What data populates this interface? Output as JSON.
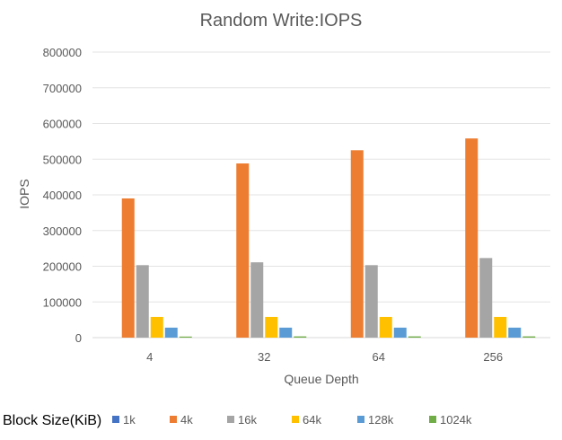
{
  "chart_data": {
    "type": "bar",
    "title": "Random Write:IOPS",
    "xlabel": "Queue Depth",
    "ylabel": "IOPS",
    "categories": [
      "4",
      "32",
      "64",
      "256"
    ],
    "ylim": [
      0,
      800000
    ],
    "yticks": [
      0,
      100000,
      200000,
      300000,
      400000,
      500000,
      600000,
      700000,
      800000
    ],
    "grid": true,
    "legend_title": "Block Size(KiB)",
    "legend_position": "bottom",
    "series": [
      {
        "name": "1k",
        "color": "#4472C4",
        "values": [
          0,
          0,
          0,
          0
        ]
      },
      {
        "name": "4k",
        "color": "#ED7D31",
        "values": [
          390000,
          488000,
          525000,
          558000
        ]
      },
      {
        "name": "16k",
        "color": "#A5A5A5",
        "values": [
          203000,
          211000,
          203000,
          223000
        ]
      },
      {
        "name": "64k",
        "color": "#FFC000",
        "values": [
          58000,
          58000,
          58000,
          58000
        ]
      },
      {
        "name": "128k",
        "color": "#5B9BD5",
        "values": [
          28000,
          28000,
          28000,
          28000
        ]
      },
      {
        "name": "1024k",
        "color": "#70AD47",
        "values": [
          3000,
          3500,
          3500,
          3500
        ]
      }
    ]
  }
}
